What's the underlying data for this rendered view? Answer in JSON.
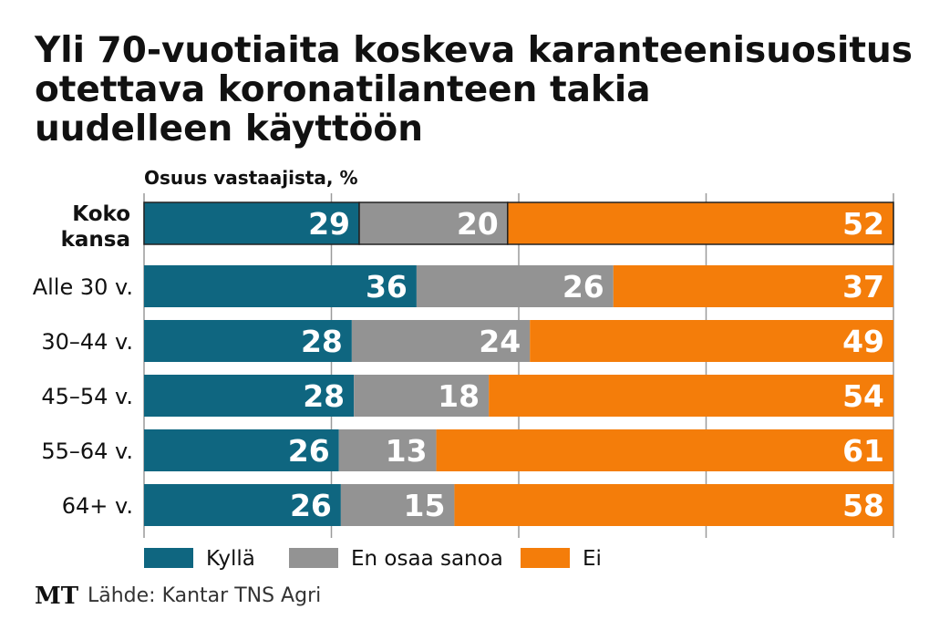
{
  "title_lines": [
    "Yli 70-vuotiaita koskeva karanteenisuositus",
    "otettava koronatilanteen takia",
    "uudelleen käyttöön"
  ],
  "chart_data": {
    "type": "bar",
    "orientation": "horizontal",
    "stacked": true,
    "subtitle": "Osuus vastaajista, %",
    "categories": [
      "Koko kansa",
      "Alle 30 v.",
      "30–44 v.",
      "45–54 v.",
      "55–64 v.",
      "64+ v."
    ],
    "series": [
      {
        "name": "Kyllä",
        "color": "#0f6680",
        "values": [
          29,
          36,
          28,
          28,
          26,
          26
        ]
      },
      {
        "name": "En osaa sanoa",
        "color": "#939393",
        "values": [
          20,
          26,
          24,
          18,
          13,
          15
        ]
      },
      {
        "name": "Ei",
        "color": "#f47d0a",
        "values": [
          52,
          37,
          49,
          54,
          61,
          58
        ]
      }
    ],
    "highlighted_category": "Koko kansa",
    "grid": true,
    "legend_position": "bottom-left"
  },
  "source": "Lähde: Kantar TNS Agri",
  "logo": "MT"
}
